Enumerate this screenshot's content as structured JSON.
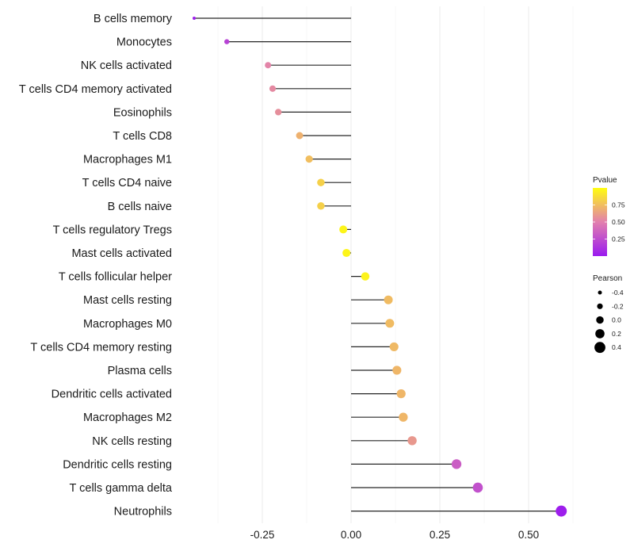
{
  "chart_data": {
    "type": "lollipop",
    "title": "",
    "xlabel": "",
    "ylabel": "",
    "xlim": [
      -0.47,
      0.63
    ],
    "xticks": [
      -0.25,
      0.0,
      0.25,
      0.5
    ],
    "xtick_labels": [
      "-0.25",
      "0.00",
      "0.25",
      "0.50"
    ],
    "grid": true,
    "categories": [
      "B cells memory",
      "Monocytes",
      "NK cells activated",
      "T cells CD4 memory activated",
      "Eosinophils",
      "T cells CD8",
      "Macrophages M1",
      "T cells CD4 naive",
      "B cells naive",
      "T cells regulatory  Tregs ",
      "Mast cells activated",
      "T cells follicular helper",
      "Mast cells resting",
      "Macrophages M0",
      "T cells CD4 memory resting",
      "Plasma cells",
      "Dendritic cells activated",
      "Macrophages M2",
      "NK cells resting",
      "Dendritic cells resting",
      "T cells gamma delta",
      "Neutrophils"
    ],
    "pearson": [
      -0.442,
      -0.35,
      -0.234,
      -0.221,
      -0.205,
      -0.145,
      -0.118,
      -0.085,
      -0.085,
      -0.022,
      -0.013,
      0.04,
      0.105,
      0.109,
      0.121,
      0.129,
      0.141,
      0.147,
      0.172,
      0.297,
      0.357,
      0.592
    ],
    "pvalue": [
      0.02,
      0.2,
      0.52,
      0.54,
      0.56,
      0.7,
      0.75,
      0.82,
      0.82,
      0.97,
      0.97,
      0.96,
      0.74,
      0.74,
      0.73,
      0.72,
      0.72,
      0.72,
      0.6,
      0.33,
      0.27,
      0.02
    ],
    "color_legend": {
      "title": "Pvalue",
      "ticks": [
        0.25,
        0.5,
        0.75
      ],
      "tick_labels": [
        "0.25",
        "0.50",
        "0.75"
      ],
      "range": [
        0.0,
        1.0
      ],
      "colors": [
        "#9a1aef",
        "#e27fae",
        "#fffd10"
      ],
      "placement": "right"
    },
    "size_legend": {
      "title": "Pearson",
      "values": [
        -0.4,
        -0.2,
        0.0,
        0.2,
        0.4
      ],
      "labels": [
        "-0.4",
        "-0.2",
        "0.0",
        "0.2",
        "0.4"
      ],
      "placement": "right"
    }
  }
}
